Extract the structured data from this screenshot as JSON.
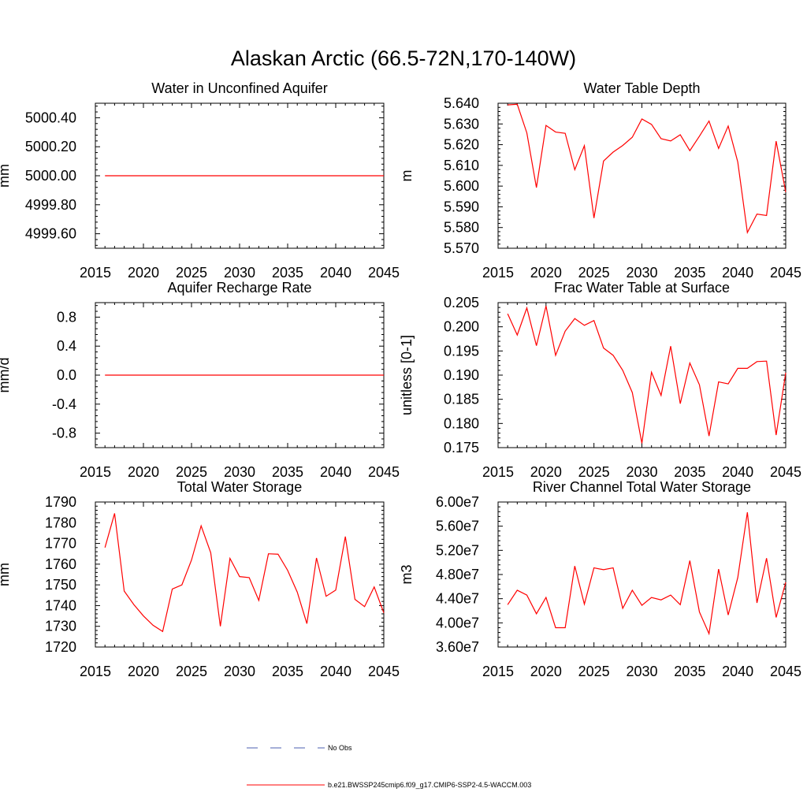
{
  "title": "Alaskan Arctic (66.5-72N,170-140W)",
  "legend": {
    "items": [
      {
        "label": "No Obs",
        "color": "#4b5fb0",
        "dash": "dashed"
      },
      {
        "label": "b.e21.BWSSP245cmip6.f09_g17.CMIP6-SSP2-4.5-WACCM.003",
        "color": "#ff0000",
        "dash": "solid"
      }
    ]
  },
  "chart_data": [
    {
      "type": "line",
      "title": "Water in Unconfined Aquifer",
      "ylabel": "mm",
      "xlabel": "",
      "xlim": [
        2015,
        2045
      ],
      "ylim": [
        4999.5,
        5000.5
      ],
      "xticks": [
        2015,
        2020,
        2025,
        2030,
        2035,
        2040,
        2045
      ],
      "yticks": [
        4999.6,
        4999.8,
        5000.0,
        5000.2,
        5000.4
      ],
      "ytick_labels": [
        "4999.60",
        "4999.80",
        "5000.00",
        "5000.20",
        "5000.40"
      ],
      "color": "#ff0000",
      "x": [
        2016,
        2017,
        2018,
        2019,
        2020,
        2021,
        2022,
        2023,
        2024,
        2025,
        2026,
        2027,
        2028,
        2029,
        2030,
        2031,
        2032,
        2033,
        2034,
        2035,
        2036,
        2037,
        2038,
        2039,
        2040,
        2041,
        2042,
        2043,
        2044,
        2045
      ],
      "y": [
        5000,
        5000,
        5000,
        5000,
        5000,
        5000,
        5000,
        5000,
        5000,
        5000,
        5000,
        5000,
        5000,
        5000,
        5000,
        5000,
        5000,
        5000,
        5000,
        5000,
        5000,
        5000,
        5000,
        5000,
        5000,
        5000,
        5000,
        5000,
        5000,
        5000
      ]
    },
    {
      "type": "line",
      "title": "Water Table Depth",
      "ylabel": "m",
      "xlabel": "",
      "xlim": [
        2015,
        2045
      ],
      "ylim": [
        5.57,
        5.64
      ],
      "xticks": [
        2015,
        2020,
        2025,
        2030,
        2035,
        2040,
        2045
      ],
      "yticks": [
        5.57,
        5.58,
        5.59,
        5.6,
        5.61,
        5.62,
        5.63,
        5.64
      ],
      "ytick_labels": [
        "5.570",
        "5.580",
        "5.590",
        "5.600",
        "5.610",
        "5.620",
        "5.630",
        "5.640"
      ],
      "color": "#ff0000",
      "x": [
        2016,
        2017,
        2018,
        2019,
        2020,
        2021,
        2022,
        2023,
        2024,
        2025,
        2026,
        2027,
        2028,
        2029,
        2030,
        2031,
        2032,
        2033,
        2034,
        2035,
        2036,
        2037,
        2038,
        2039,
        2040,
        2041,
        2042,
        2043,
        2044,
        2045
      ],
      "y": [
        5.6392,
        5.6395,
        5.6257,
        5.5993,
        5.6293,
        5.6261,
        5.6255,
        5.6079,
        5.6195,
        5.5846,
        5.6121,
        5.6164,
        5.6196,
        5.6236,
        5.6324,
        5.6298,
        5.6229,
        5.6218,
        5.6248,
        5.6171,
        5.6241,
        5.6314,
        5.6182,
        5.629,
        5.6116,
        5.5776,
        5.5865,
        5.5858,
        5.6217,
        5.5971
      ]
    },
    {
      "type": "line",
      "title": "Aquifer Recharge Rate",
      "ylabel": "mm/d",
      "xlabel": "",
      "xlim": [
        2015,
        2045
      ],
      "ylim": [
        -1.0,
        1.0
      ],
      "xticks": [
        2015,
        2020,
        2025,
        2030,
        2035,
        2040,
        2045
      ],
      "yticks": [
        -0.8,
        -0.4,
        0.0,
        0.4,
        0.8
      ],
      "ytick_labels": [
        "-0.8",
        "-0.4",
        "0.0",
        "0.4",
        "0.8"
      ],
      "color": "#ff0000",
      "x": [
        2016,
        2017,
        2018,
        2019,
        2020,
        2021,
        2022,
        2023,
        2024,
        2025,
        2026,
        2027,
        2028,
        2029,
        2030,
        2031,
        2032,
        2033,
        2034,
        2035,
        2036,
        2037,
        2038,
        2039,
        2040,
        2041,
        2042,
        2043,
        2044,
        2045
      ],
      "y": [
        0,
        0,
        0,
        0,
        0,
        0,
        0,
        0,
        0,
        0,
        0,
        0,
        0,
        0,
        0,
        0,
        0,
        0,
        0,
        0,
        0,
        0,
        0,
        0,
        0,
        0,
        0,
        0,
        0,
        0
      ]
    },
    {
      "type": "line",
      "title": "Frac Water Table at Surface",
      "ylabel": "unitless [0-1]",
      "xlabel": "",
      "xlim": [
        2015,
        2045
      ],
      "ylim": [
        0.175,
        0.205
      ],
      "xticks": [
        2015,
        2020,
        2025,
        2030,
        2035,
        2040,
        2045
      ],
      "yticks": [
        0.175,
        0.18,
        0.185,
        0.19,
        0.195,
        0.2,
        0.205
      ],
      "ytick_labels": [
        "0.175",
        "0.180",
        "0.185",
        "0.190",
        "0.195",
        "0.200",
        "0.205"
      ],
      "color": "#ff0000",
      "x": [
        2016,
        2017,
        2018,
        2019,
        2020,
        2021,
        2022,
        2023,
        2024,
        2025,
        2026,
        2027,
        2028,
        2029,
        2030,
        2031,
        2032,
        2033,
        2034,
        2035,
        2036,
        2037,
        2038,
        2039,
        2040,
        2041,
        2042,
        2043,
        2044,
        2045
      ],
      "y": [
        0.2027,
        0.1983,
        0.2039,
        0.1961,
        0.2043,
        0.1941,
        0.1991,
        0.2017,
        0.2003,
        0.2013,
        0.1956,
        0.1941,
        0.191,
        0.1864,
        0.1759,
        0.1906,
        0.1858,
        0.196,
        0.1841,
        0.1925,
        0.188,
        0.1774,
        0.1886,
        0.1882,
        0.1914,
        0.1914,
        0.1928,
        0.1929,
        0.1776,
        0.1905
      ]
    },
    {
      "type": "line",
      "title": "Total Water Storage",
      "ylabel": "mm",
      "xlabel": "",
      "xlim": [
        2015,
        2045
      ],
      "ylim": [
        1720,
        1790
      ],
      "xticks": [
        2015,
        2020,
        2025,
        2030,
        2035,
        2040,
        2045
      ],
      "yticks": [
        1720,
        1730,
        1740,
        1750,
        1760,
        1770,
        1780,
        1790
      ],
      "ytick_labels": [
        "1720",
        "1730",
        "1740",
        "1750",
        "1760",
        "1770",
        "1780",
        "1790"
      ],
      "color": "#ff0000",
      "x": [
        2016,
        2017,
        2018,
        2019,
        2020,
        2021,
        2022,
        2023,
        2024,
        2025,
        2026,
        2027,
        2028,
        2029,
        2030,
        2031,
        2032,
        2033,
        2034,
        2035,
        2036,
        2037,
        2038,
        2039,
        2040,
        2041,
        2042,
        2043,
        2044,
        2045
      ],
      "y": [
        1768,
        1784.5,
        1747,
        1740.5,
        1735,
        1730.5,
        1727.5,
        1748,
        1750,
        1762,
        1778.5,
        1765.5,
        1730,
        1762.8,
        1754,
        1753.5,
        1742.5,
        1765,
        1764.8,
        1757,
        1746.5,
        1731.3,
        1763,
        1744.5,
        1747.5,
        1773.3,
        1743,
        1739.5,
        1749,
        1736.5
      ]
    },
    {
      "type": "line",
      "title": "River Channel Total Water Storage",
      "ylabel": "m3",
      "xlabel": "",
      "xlim": [
        2015,
        2045
      ],
      "ylim": [
        36000000,
        60000000
      ],
      "xticks": [
        2015,
        2020,
        2025,
        2030,
        2035,
        2040,
        2045
      ],
      "yticks": [
        36000000,
        40000000,
        44000000,
        48000000,
        52000000,
        56000000,
        60000000
      ],
      "ytick_labels": [
        "3.60e7",
        "4.00e7",
        "4.40e7",
        "4.80e7",
        "5.20e7",
        "5.60e7",
        "6.00e7"
      ],
      "color": "#ff0000",
      "x": [
        2016,
        2017,
        2018,
        2019,
        2020,
        2021,
        2022,
        2023,
        2024,
        2025,
        2026,
        2027,
        2028,
        2029,
        2030,
        2031,
        2032,
        2033,
        2034,
        2035,
        2036,
        2037,
        2038,
        2039,
        2040,
        2041,
        2042,
        2043,
        2044,
        2045
      ],
      "y": [
        43000000,
        45400000,
        44600000,
        41500000,
        44200000,
        39200000,
        39200000,
        49400000,
        43100000,
        49100000,
        48800000,
        49100000,
        42400000,
        45400000,
        42900000,
        44200000,
        43800000,
        44600000,
        43000000,
        50300000,
        41800000,
        38200000,
        48900000,
        41300000,
        47500000,
        58300000,
        43300000,
        50700000,
        40900000,
        46700000
      ]
    }
  ]
}
